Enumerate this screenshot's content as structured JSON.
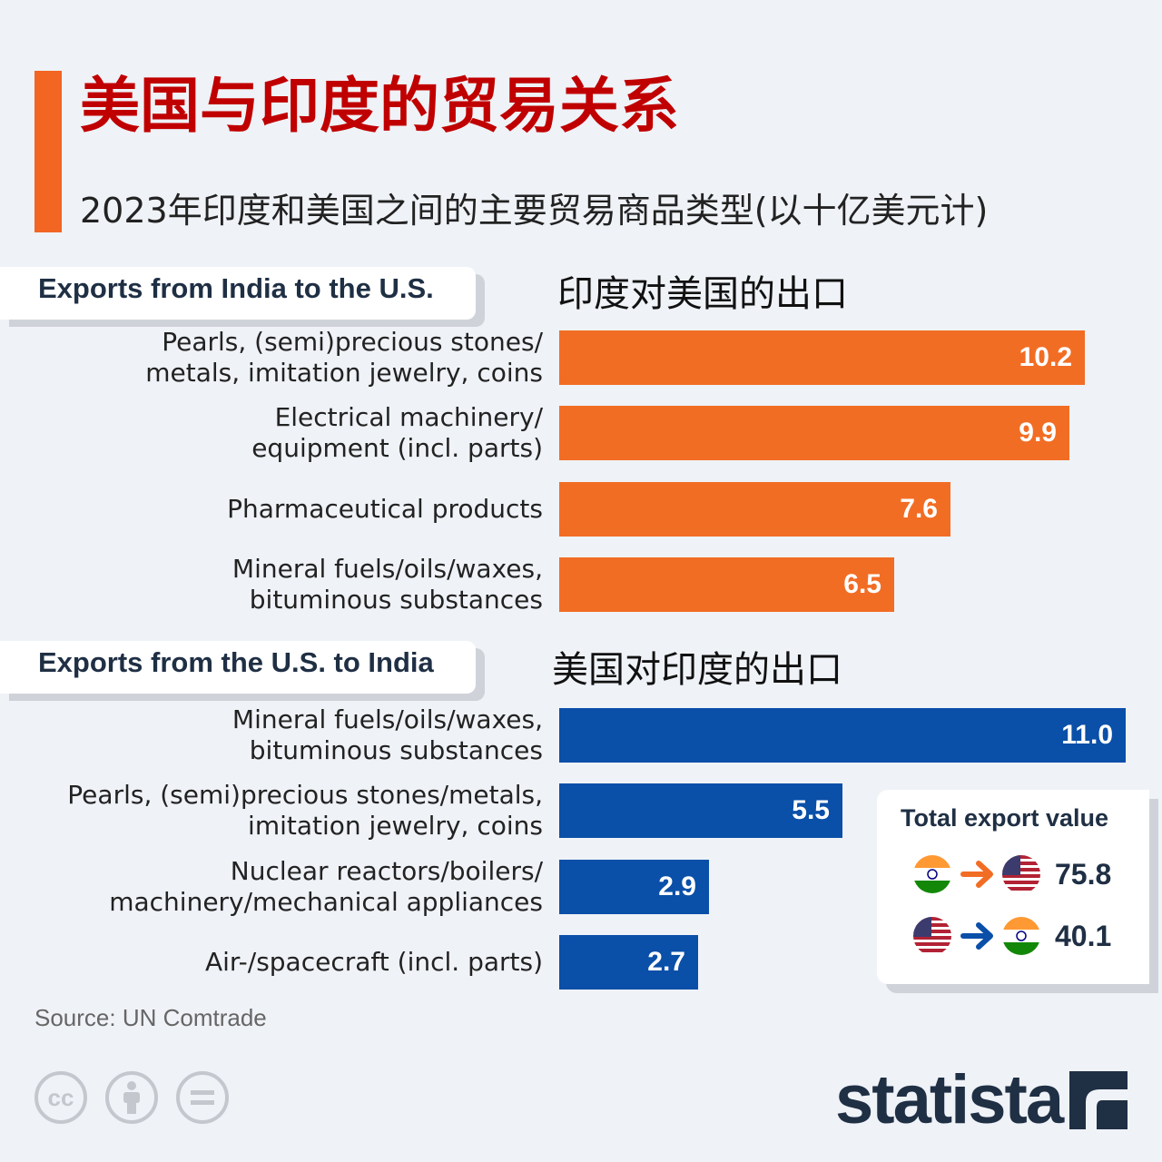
{
  "title": "美国与印度的贸易关系",
  "subtitle": "2023年印度和美国之间的主要贸易商品类型(以十亿美元计)",
  "india_section": {
    "tab_label": "Exports from India to the U.S.",
    "cn_label": "印度对美国的出口"
  },
  "us_section": {
    "tab_label": "Exports from the U.S. to India",
    "cn_label": "美国对印度的出口"
  },
  "chart_data": [
    {
      "type": "bar",
      "title": "Exports from India to the U.S.",
      "categories": [
        "Pearls, (semi)precious stones/\nmetals, imitation jewelry, coins",
        "Electrical machinery/\nequipment (incl. parts)",
        "Pharmaceutical products",
        "Mineral fuels/oils/waxes,\nbituminous substances"
      ],
      "values": [
        10.2,
        9.9,
        7.6,
        6.5
      ],
      "value_labels": [
        "10.2",
        "9.9",
        "7.6",
        "6.5"
      ],
      "color": "#f26d24",
      "orientation": "horizontal",
      "xlim": [
        0,
        11.0
      ]
    },
    {
      "type": "bar",
      "title": "Exports from the U.S. to India",
      "categories": [
        "Mineral fuels/oils/waxes,\nbituminous substances",
        "Pearls, (semi)precious stones/metals,\nimitation jewelry, coins",
        "Nuclear reactors/boilers/\nmachinery/mechanical appliances",
        "Air-/spacecraft (incl. parts)"
      ],
      "values": [
        11.0,
        5.5,
        2.9,
        2.7
      ],
      "value_labels": [
        "11.0",
        "5.5",
        "2.9",
        "2.7"
      ],
      "color": "#0a4fa8",
      "orientation": "horizontal",
      "xlim": [
        0,
        11.0
      ]
    }
  ],
  "total_export": {
    "title": "Total export value",
    "rows": [
      {
        "from": "india-flag-icon",
        "to": "us-flag-icon",
        "arrow_color": "#f26d24",
        "value": "75.8"
      },
      {
        "from": "us-flag-icon",
        "to": "india-flag-icon",
        "arrow_color": "#0a4fa8",
        "value": "40.1"
      }
    ]
  },
  "source": "Source: UN Comtrade",
  "license_icons": [
    "cc-icon",
    "attribution-icon",
    "no-derivatives-icon"
  ],
  "brand": "statista"
}
